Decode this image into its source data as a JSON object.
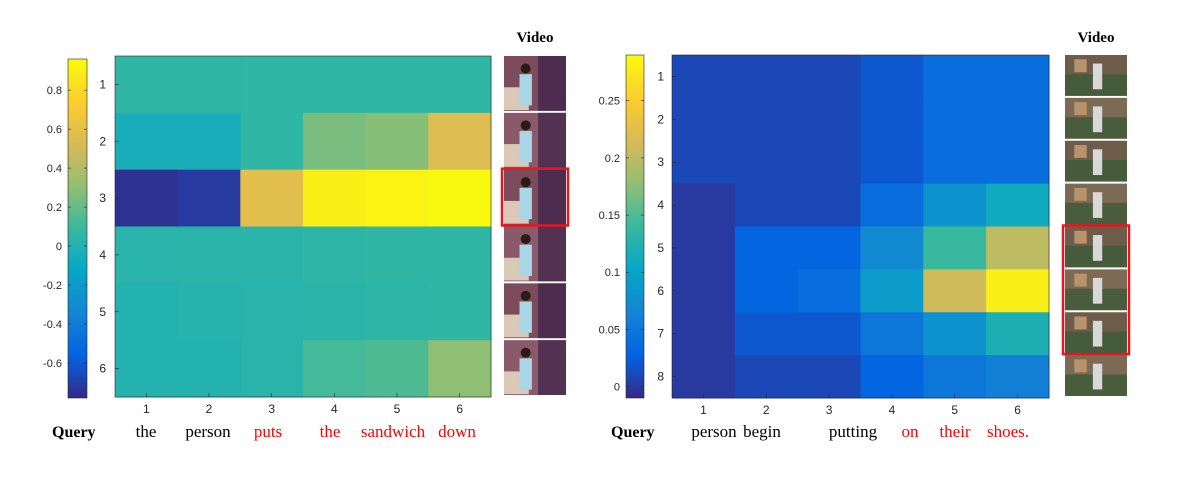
{
  "chart_data": [
    {
      "type": "heatmap",
      "panel": "left",
      "rows": [
        "1",
        "2",
        "3",
        "4",
        "5",
        "6"
      ],
      "cols": [
        "1",
        "2",
        "3",
        "4",
        "5",
        "6"
      ],
      "colorbar": {
        "ticks": [
          0.8,
          0.6,
          0.4,
          0.2,
          0,
          -0.2,
          -0.4,
          -0.6
        ],
        "range": [
          -0.78,
          0.96
        ]
      },
      "values": [
        [
          0.05,
          0.05,
          0.05,
          0.05,
          0.05,
          0.05
        ],
        [
          -0.05,
          -0.05,
          0.05,
          0.25,
          0.28,
          0.55
        ],
        [
          -0.75,
          -0.72,
          0.58,
          0.9,
          0.92,
          0.95
        ],
        [
          0.02,
          0.03,
          0.03,
          0.04,
          0.05,
          0.05
        ],
        [
          0.0,
          0.01,
          0.02,
          0.03,
          0.04,
          0.05
        ],
        [
          0.0,
          0.0,
          0.02,
          0.12,
          0.14,
          0.3
        ]
      ],
      "video_label": "Video",
      "query_label": "Query",
      "query_words": [
        {
          "text": "the",
          "highlight": false
        },
        {
          "text": "person",
          "highlight": false
        },
        {
          "text": "puts",
          "highlight": true
        },
        {
          "text": "the",
          "highlight": true
        },
        {
          "text": "sandwich",
          "highlight": true
        },
        {
          "text": "down",
          "highlight": true
        }
      ],
      "highlighted_frames": [
        3
      ]
    },
    {
      "type": "heatmap",
      "panel": "right",
      "rows": [
        "1",
        "2",
        "3",
        "4",
        "5",
        "6",
        "7",
        "8"
      ],
      "cols": [
        "1",
        "2",
        "3",
        "4",
        "5",
        "6"
      ],
      "colorbar": {
        "ticks": [
          0.25,
          0.2,
          0.15,
          0.1,
          0.05,
          0
        ],
        "range": [
          -0.01,
          0.29
        ]
      },
      "values": [
        [
          0.01,
          0.01,
          0.01,
          0.02,
          0.04,
          0.04
        ],
        [
          0.01,
          0.01,
          0.01,
          0.02,
          0.04,
          0.04
        ],
        [
          0.01,
          0.01,
          0.01,
          0.02,
          0.04,
          0.04
        ],
        [
          0.0,
          0.01,
          0.01,
          0.04,
          0.08,
          0.11
        ],
        [
          0.0,
          0.03,
          0.03,
          0.07,
          0.14,
          0.2
        ],
        [
          0.0,
          0.03,
          0.04,
          0.09,
          0.21,
          0.28
        ],
        [
          0.0,
          0.02,
          0.02,
          0.05,
          0.08,
          0.12
        ],
        [
          0.0,
          0.01,
          0.01,
          0.03,
          0.05,
          0.06
        ]
      ],
      "video_label": "Video",
      "query_label": "Query",
      "query_words": [
        {
          "text": "person",
          "highlight": false
        },
        {
          "text": "begin",
          "highlight": false
        },
        {
          "text": "putting",
          "highlight": false
        },
        {
          "text": "on",
          "highlight": true
        },
        {
          "text": "their",
          "highlight": true
        },
        {
          "text": "shoes.",
          "highlight": true
        }
      ],
      "highlighted_frames": [
        5,
        6,
        7
      ]
    }
  ],
  "colors": {
    "highlight_word": "#ff0000",
    "frame_box": "#e8141e",
    "text": "#000000",
    "tick_text": "#262626"
  }
}
